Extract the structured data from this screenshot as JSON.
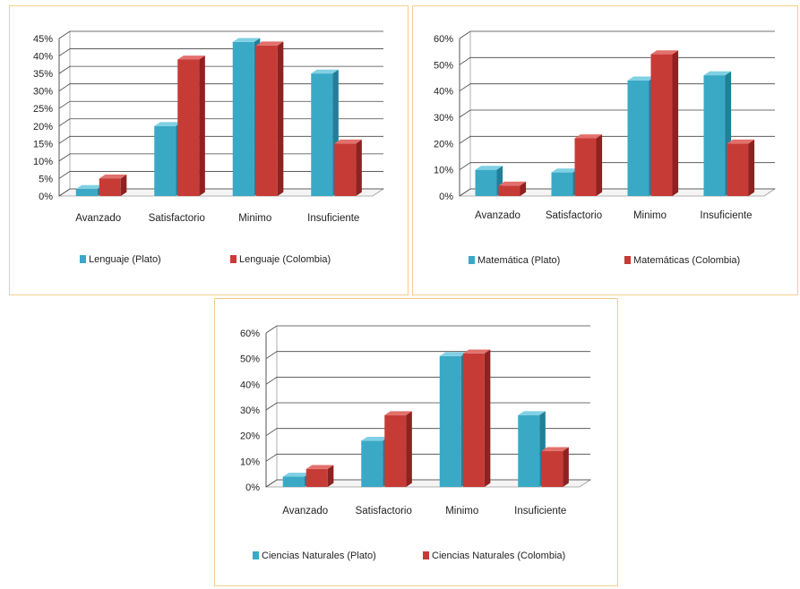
{
  "colors": {
    "plato": "#3aa9c6",
    "plato_side": "#217f98",
    "plato_top": "#7fd0e4",
    "colombia": "#c73b37",
    "colombia_side": "#8e2220",
    "colombia_top": "#e2706b",
    "border": "#f2cf8a",
    "grid": "#444444"
  },
  "chart_data": [
    {
      "type": "bar",
      "categories": [
        "Avanzado",
        "Satisfactorio",
        "Minimo",
        "Insuficiente"
      ],
      "series": [
        {
          "name": "Lenguaje (Plato)",
          "values": [
            2,
            20,
            44,
            35
          ]
        },
        {
          "name": "Lenguaje (Colombia)",
          "values": [
            5,
            39,
            43,
            15
          ]
        }
      ],
      "ylim": [
        0,
        45
      ],
      "yticks": [
        "0%",
        "5%",
        "10%",
        "15%",
        "20%",
        "25%",
        "30%",
        "35%",
        "40%",
        "45%"
      ],
      "grid": true,
      "legend": "bottom"
    },
    {
      "type": "bar",
      "categories": [
        "Avanzado",
        "Satisfactorio",
        "Minimo",
        "Insuficiente"
      ],
      "series": [
        {
          "name": "Matemática (Plato)",
          "values": [
            10,
            9,
            44,
            46
          ]
        },
        {
          "name": "Matemáticas (Colombia)",
          "values": [
            4,
            22,
            54,
            20
          ]
        }
      ],
      "ylim": [
        0,
        60
      ],
      "yticks": [
        "0%",
        "10%",
        "20%",
        "30%",
        "40%",
        "50%",
        "60%"
      ],
      "grid": true,
      "legend": "bottom"
    },
    {
      "type": "bar",
      "categories": [
        "Avanzado",
        "Satisfactorio",
        "Minimo",
        "Insuficiente"
      ],
      "series": [
        {
          "name": "Ciencias Naturales (Plato)",
          "values": [
            4,
            18,
            51,
            28
          ]
        },
        {
          "name": "Ciencias Naturales (Colombia)",
          "values": [
            7,
            28,
            52,
            14
          ]
        }
      ],
      "ylim": [
        0,
        60
      ],
      "yticks": [
        "0%",
        "10%",
        "20%",
        "30%",
        "40%",
        "50%",
        "60%"
      ],
      "grid": true,
      "legend": "bottom"
    }
  ]
}
